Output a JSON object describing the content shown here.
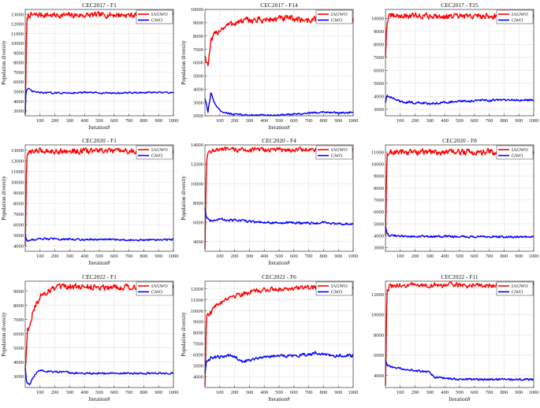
{
  "chart_data": [
    {
      "type": "line",
      "title": "CEC2017 - F1",
      "xlabel": "Iteration#",
      "ylabel": "Population diversity",
      "xlim": [
        0,
        1000
      ],
      "ylim": [
        2500,
        13500
      ],
      "xticks": [
        100,
        200,
        300,
        400,
        500,
        600,
        700,
        800,
        900,
        1000
      ],
      "yticks": [
        3000,
        4000,
        5000,
        6000,
        7000,
        8000,
        9000,
        10000,
        11000,
        12000,
        13000
      ],
      "grid": true,
      "legend": "top-right",
      "series": [
        {
          "name": "IAGWO",
          "color": "#ff0000",
          "x": [
            0,
            10,
            20,
            40,
            100,
            200,
            400,
            600,
            800,
            1000
          ],
          "y": [
            2600,
            12200,
            12900,
            12900,
            12950,
            12900,
            12900,
            12950,
            12900,
            12900
          ],
          "noise": 260
        },
        {
          "name": "GWO",
          "color": "#0000ff",
          "x": [
            0,
            5,
            20,
            50,
            100,
            200,
            400,
            600,
            800,
            1000
          ],
          "y": [
            2800,
            5100,
            5300,
            5000,
            4900,
            4850,
            4900,
            4850,
            4900,
            4900
          ],
          "noise": 70
        }
      ]
    },
    {
      "type": "line",
      "title": "CEC2017 - F14",
      "xlabel": "Iteration#",
      "ylabel": "Population diversity",
      "xlim": [
        0,
        1000
      ],
      "ylim": [
        2000,
        10000
      ],
      "xticks": [
        100,
        200,
        300,
        400,
        500,
        600,
        700,
        800,
        900,
        1000
      ],
      "yticks": [
        2000,
        3000,
        4000,
        5000,
        6000,
        7000,
        8000,
        9000,
        10000
      ],
      "grid": true,
      "legend": "top-right",
      "series": [
        {
          "name": "IAGWO",
          "color": "#ff0000",
          "x": [
            0,
            20,
            40,
            60,
            100,
            150,
            200,
            300,
            400,
            500,
            600,
            700,
            800,
            900,
            1000
          ],
          "y": [
            6500,
            5800,
            7500,
            8000,
            8500,
            8800,
            9000,
            9200,
            9200,
            9300,
            9300,
            9200,
            9300,
            9300,
            9200
          ],
          "noise": 220
        },
        {
          "name": "GWO",
          "color": "#0000ff",
          "x": [
            0,
            20,
            40,
            60,
            80,
            100,
            150,
            200,
            300,
            500,
            600,
            700,
            800,
            900,
            1000
          ],
          "y": [
            3300,
            2300,
            3700,
            3100,
            2700,
            2400,
            2200,
            2100,
            2050,
            2050,
            2100,
            2200,
            2300,
            2200,
            2250
          ],
          "noise": 60
        }
      ]
    },
    {
      "type": "line",
      "title": "CEC2017 - F25",
      "xlabel": "",
      "ylabel": "",
      "xlim": [
        0,
        1000
      ],
      "ylim": [
        2500,
        10700
      ],
      "xticks": [
        100,
        200,
        300,
        400,
        500,
        600,
        700,
        800,
        900,
        1000
      ],
      "yticks": [
        3000,
        4000,
        5000,
        6000,
        7000,
        8000,
        9000,
        10000
      ],
      "grid": true,
      "legend": "top-right",
      "series": [
        {
          "name": "IAGWO",
          "color": "#ff0000",
          "x": [
            0,
            10,
            30,
            100,
            300,
            500,
            700,
            900,
            1000
          ],
          "y": [
            7000,
            9800,
            10200,
            10200,
            10200,
            10150,
            10200,
            10150,
            10150
          ],
          "noise": 200
        },
        {
          "name": "GWO",
          "color": "#0000ff",
          "x": [
            0,
            10,
            30,
            60,
            100,
            200,
            300,
            400,
            500,
            600,
            700,
            800,
            1000
          ],
          "y": [
            3500,
            4100,
            3900,
            3800,
            3600,
            3500,
            3450,
            3550,
            3600,
            3650,
            3700,
            3700,
            3700
          ],
          "noise": 80
        }
      ]
    },
    {
      "type": "line",
      "title": "CEC2020 - F1",
      "xlabel": "Iteration#",
      "ylabel": "Population diversity",
      "xlim": [
        0,
        1000
      ],
      "ylim": [
        3500,
        13500
      ],
      "xticks": [
        100,
        200,
        300,
        400,
        500,
        600,
        700,
        800,
        900,
        1000
      ],
      "yticks": [
        4000,
        5000,
        6000,
        7000,
        8000,
        9000,
        10000,
        11000,
        12000,
        13000
      ],
      "grid": true,
      "legend": "top-right",
      "series": [
        {
          "name": "IAGWO",
          "color": "#ff0000",
          "x": [
            0,
            10,
            30,
            100,
            300,
            500,
            700,
            900,
            1000
          ],
          "y": [
            4000,
            12200,
            12900,
            12950,
            12900,
            12950,
            12900,
            12950,
            12900
          ],
          "noise": 230
        },
        {
          "name": "GWO",
          "color": "#0000ff",
          "x": [
            0,
            10,
            30,
            60,
            100,
            200,
            400,
            600,
            800,
            1000
          ],
          "y": [
            5000,
            4500,
            4500,
            4600,
            4700,
            4650,
            4600,
            4600,
            4550,
            4600
          ],
          "noise": 80
        }
      ]
    },
    {
      "type": "line",
      "title": "CEC2020 - F4",
      "xlabel": "Iteration#",
      "ylabel": "Population diversity",
      "xlim": [
        0,
        1000
      ],
      "ylim": [
        3000,
        14000
      ],
      "xticks": [
        100,
        200,
        300,
        400,
        500,
        600,
        700,
        800,
        900,
        1000
      ],
      "yticks": [
        4000,
        6000,
        8000,
        10000,
        12000,
        14000
      ],
      "grid": true,
      "legend": "top-right",
      "series": [
        {
          "name": "IAGWO",
          "color": "#ff0000",
          "x": [
            0,
            10,
            30,
            100,
            300,
            500,
            700,
            900,
            1000
          ],
          "y": [
            3200,
            12500,
            13400,
            13500,
            13500,
            13500,
            13500,
            13500,
            13500
          ],
          "noise": 220
        },
        {
          "name": "GWO",
          "color": "#0000ff",
          "x": [
            0,
            10,
            40,
            100,
            200,
            300,
            400,
            500,
            600,
            700,
            800,
            900,
            1000
          ],
          "y": [
            7500,
            6500,
            6200,
            6300,
            6200,
            6100,
            6000,
            5900,
            5950,
            5900,
            5950,
            5850,
            5800
          ],
          "noise": 110
        }
      ]
    },
    {
      "type": "line",
      "title": "CEC2020 - F8",
      "xlabel": "",
      "ylabel": "",
      "xlim": [
        0,
        1000
      ],
      "ylim": [
        2700,
        11600
      ],
      "xticks": [
        100,
        200,
        300,
        400,
        500,
        600,
        700,
        800,
        900,
        1000
      ],
      "yticks": [
        3000,
        4000,
        5000,
        6000,
        7000,
        8000,
        9000,
        10000,
        11000
      ],
      "grid": true,
      "legend": "top-right",
      "series": [
        {
          "name": "IAGWO",
          "color": "#ff0000",
          "x": [
            0,
            10,
            30,
            100,
            300,
            500,
            700,
            900,
            1000
          ],
          "y": [
            4000,
            10600,
            11000,
            11000,
            11000,
            11000,
            11000,
            11000,
            11000
          ],
          "noise": 230
        },
        {
          "name": "GWO",
          "color": "#0000ff",
          "x": [
            0,
            10,
            30,
            60,
            100,
            200,
            300,
            400,
            600,
            800,
            1000
          ],
          "y": [
            4800,
            4200,
            4000,
            4000,
            3950,
            3950,
            3900,
            3950,
            3900,
            3900,
            3900
          ],
          "noise": 80
        }
      ]
    },
    {
      "type": "line",
      "title": "CEC2022 - F1",
      "xlabel": "Iteration#",
      "ylabel": "Population diversity",
      "xlim": [
        0,
        1000
      ],
      "ylim": [
        2200,
        9700
      ],
      "xticks": [
        100,
        200,
        300,
        400,
        500,
        600,
        700,
        800,
        900,
        1000
      ],
      "yticks": [
        3000,
        4000,
        5000,
        6000,
        7000,
        8000,
        9000
      ],
      "grid": true,
      "legend": "top-right",
      "series": [
        {
          "name": "IAGWO",
          "color": "#ff0000",
          "x": [
            0,
            15,
            30,
            60,
            100,
            150,
            200,
            300,
            500,
            700,
            900,
            1000
          ],
          "y": [
            3400,
            6200,
            6700,
            7800,
            8600,
            9000,
            9200,
            9300,
            9300,
            9300,
            9300,
            9300
          ],
          "noise": 200
        },
        {
          "name": "GWO",
          "color": "#0000ff",
          "x": [
            0,
            10,
            30,
            60,
            80,
            100,
            150,
            200,
            300,
            400,
            500,
            600,
            800,
            1000
          ],
          "y": [
            3600,
            2500,
            2400,
            3000,
            3300,
            3400,
            3350,
            3300,
            3250,
            3200,
            3200,
            3200,
            3200,
            3200
          ],
          "noise": 60
        }
      ]
    },
    {
      "type": "line",
      "title": "CEC2022 - F6",
      "xlabel": "Iteration#",
      "ylabel": "Population diversity",
      "xlim": [
        0,
        1000
      ],
      "ylim": [
        3000,
        12700
      ],
      "xticks": [
        100,
        200,
        300,
        400,
        500,
        600,
        700,
        800,
        900,
        1000
      ],
      "yticks": [
        4000,
        5000,
        6000,
        7000,
        8000,
        9000,
        10000,
        11000,
        12000
      ],
      "grid": true,
      "legend": "top-right",
      "series": [
        {
          "name": "IAGWO",
          "color": "#ff0000",
          "x": [
            0,
            10,
            40,
            60,
            100,
            150,
            200,
            300,
            400,
            500,
            600,
            700,
            800,
            900,
            1000
          ],
          "y": [
            3100,
            9700,
            9800,
            10300,
            10700,
            11200,
            11400,
            11700,
            11900,
            12000,
            12100,
            12100,
            12200,
            12200,
            12200
          ],
          "noise": 200
        },
        {
          "name": "GWO",
          "color": "#0000ff",
          "x": [
            0,
            10,
            40,
            100,
            200,
            250,
            300,
            350,
            400,
            500,
            600,
            700,
            750,
            800,
            900,
            1000
          ],
          "y": [
            4300,
            5400,
            5700,
            5800,
            5900,
            5400,
            5500,
            5700,
            5800,
            5900,
            5900,
            6000,
            6200,
            6000,
            5900,
            5900
          ],
          "noise": 130
        }
      ]
    },
    {
      "type": "line",
      "title": "CEC2022 - F11",
      "xlabel": "Iteration#",
      "ylabel": "",
      "xlim": [
        0,
        1000
      ],
      "ylim": [
        2800,
        13300
      ],
      "xticks": [
        100,
        200,
        300,
        400,
        500,
        600,
        700,
        800,
        900,
        1000
      ],
      "yticks": [
        4000,
        6000,
        8000,
        10000,
        12000
      ],
      "grid": true,
      "legend": "top-right",
      "series": [
        {
          "name": "IAGWO",
          "color": "#ff0000",
          "x": [
            0,
            10,
            30,
            100,
            300,
            500,
            700,
            900,
            1000
          ],
          "y": [
            3000,
            12300,
            12800,
            12900,
            12900,
            12900,
            12900,
            12900,
            12900
          ],
          "noise": 220
        },
        {
          "name": "GWO",
          "color": "#0000ff",
          "x": [
            0,
            10,
            40,
            100,
            200,
            300,
            330,
            400,
            500,
            600,
            800,
            1000
          ],
          "y": [
            5500,
            5000,
            4800,
            4700,
            4500,
            4300,
            3800,
            3700,
            3600,
            3600,
            3600,
            3600
          ],
          "noise": 90
        }
      ]
    }
  ]
}
